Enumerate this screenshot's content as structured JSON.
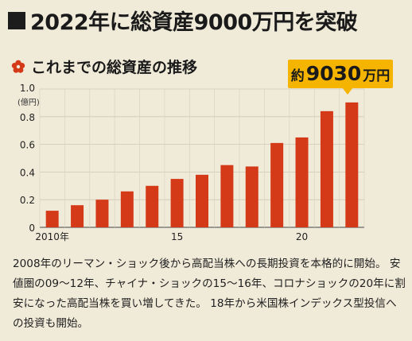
{
  "headline": "2022年に総資産9000万円を突破",
  "subheading": "これまでの総資産の推移",
  "callout": {
    "prefix": "約",
    "value": "9030",
    "suffix": "万円"
  },
  "caption": "2008年のリーマン・ショック後から高配当株への長期投資を本格的に開始。 安値圏の09～12年、チャイナ・ショックの15～16年、コロナショックの20年に割安になった高配当株を買い増してきた。 18年から米国株インデックス型投信への投資も開始。",
  "colors": {
    "bar": "#d53a18",
    "accent": "#f5b400",
    "flower": "#d53a18"
  },
  "chart_data": {
    "type": "bar",
    "title": "",
    "xlabel": "",
    "ylabel": "(億円)",
    "categories": [
      "2010",
      "2011",
      "2012",
      "2013",
      "2014",
      "2015",
      "2016",
      "2017",
      "2018",
      "2019",
      "2020",
      "2021",
      "2022"
    ],
    "x_tick_labels": [
      {
        "category": "2010",
        "label": "2010年"
      },
      {
        "category": "2015",
        "label": "15"
      },
      {
        "category": "2020",
        "label": "20"
      }
    ],
    "values": [
      0.12,
      0.16,
      0.2,
      0.26,
      0.3,
      0.35,
      0.38,
      0.45,
      0.44,
      0.61,
      0.65,
      0.84,
      0.903
    ],
    "ylim": [
      0,
      1.0
    ],
    "yticks": [
      0,
      0.2,
      0.4,
      0.6,
      0.8,
      1.0
    ],
    "ytick_labels": [
      "0",
      "0.2",
      "0.4",
      "0.6",
      "0.8",
      "1.0"
    ],
    "grid": true,
    "legend": "none"
  }
}
